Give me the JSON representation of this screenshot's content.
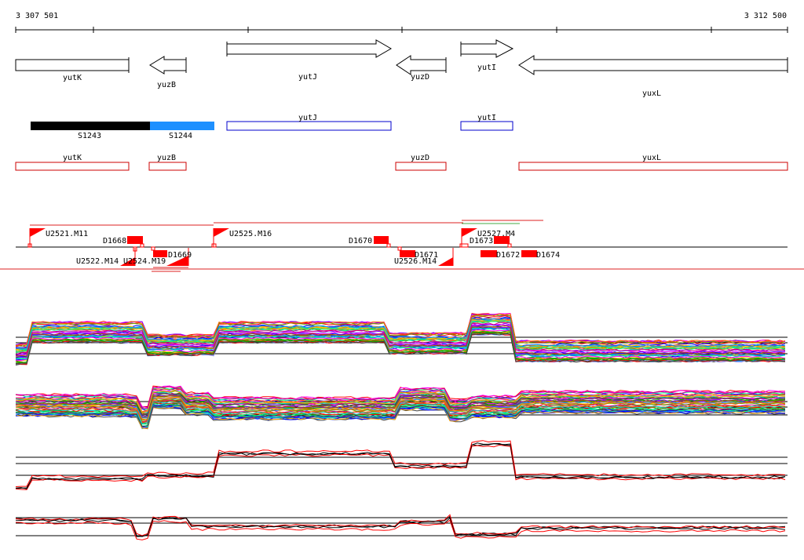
{
  "coordinates": {
    "start_label": "3 307 501",
    "end_label": "3 312 500"
  },
  "genes_row1": [
    {
      "name": "yutK",
      "strand": "+"
    },
    {
      "name": "yuzB",
      "strand": "-"
    },
    {
      "name": "yutJ",
      "strand": "+"
    },
    {
      "name": "yuzD",
      "strand": "-"
    },
    {
      "name": "yutI",
      "strand": "+"
    },
    {
      "name": "yuxL",
      "strand": "-"
    }
  ],
  "segments": [
    {
      "name": "S1243",
      "color": "#000000"
    },
    {
      "name": "S1244",
      "color": "#1e90ff"
    }
  ],
  "annot_blue": [
    {
      "name": "yutJ",
      "color": "#0000cc"
    },
    {
      "name": "yutI",
      "color": "#0000cc"
    }
  ],
  "annot_red": [
    {
      "name": "yutK",
      "color": "#cc0000"
    },
    {
      "name": "yuzB",
      "color": "#cc0000"
    },
    {
      "name": "yuzD",
      "color": "#cc0000"
    },
    {
      "name": "yuxL",
      "color": "#cc0000"
    }
  ],
  "features": {
    "upshifts": [
      {
        "name": "U2521.M11"
      },
      {
        "name": "U2525.M16"
      },
      {
        "name": "U2527.M4"
      },
      {
        "name": "U2522.M14"
      },
      {
        "name": "U2524.M19"
      },
      {
        "name": "U2526.M14"
      }
    ],
    "downshifts": [
      {
        "name": "D1668"
      },
      {
        "name": "D1669"
      },
      {
        "name": "D1670"
      },
      {
        "name": "D1671"
      },
      {
        "name": "D1672"
      },
      {
        "name": "D1673"
      },
      {
        "name": "D1674"
      }
    ],
    "marker_color": "#ff0000"
  },
  "tracks": {
    "palette": [
      "#ff0000",
      "#00aa00",
      "#0000ff",
      "#ff00ff",
      "#00cccc",
      "#ffaa00",
      "#8800ff",
      "#00ff88",
      "#aa5500",
      "#0088ff",
      "#cc0088",
      "#66aa00",
      "#ff6600",
      "#444444",
      "#9999ff",
      "#ffcc00"
    ],
    "pair_colors": [
      "#000000",
      "#ff0000"
    ]
  }
}
